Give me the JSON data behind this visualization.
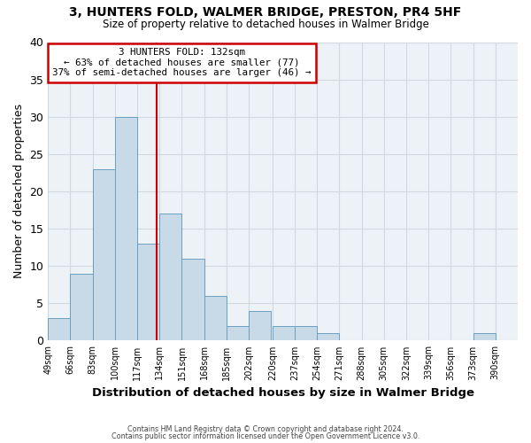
{
  "title": "3, HUNTERS FOLD, WALMER BRIDGE, PRESTON, PR4 5HF",
  "subtitle": "Size of property relative to detached houses in Walmer Bridge",
  "xlabel": "Distribution of detached houses by size in Walmer Bridge",
  "ylabel": "Number of detached properties",
  "bin_labels": [
    "49sqm",
    "66sqm",
    "83sqm",
    "100sqm",
    "117sqm",
    "134sqm",
    "151sqm",
    "168sqm",
    "185sqm",
    "202sqm",
    "220sqm",
    "237sqm",
    "254sqm",
    "271sqm",
    "288sqm",
    "305sqm",
    "322sqm",
    "339sqm",
    "356sqm",
    "373sqm",
    "390sqm"
  ],
  "bin_edges": [
    49,
    66,
    83,
    100,
    117,
    134,
    151,
    168,
    185,
    202,
    220,
    237,
    254,
    271,
    288,
    305,
    322,
    339,
    356,
    373,
    390
  ],
  "counts": [
    3,
    9,
    23,
    30,
    13,
    17,
    11,
    6,
    2,
    4,
    2,
    2,
    1,
    0,
    0,
    0,
    0,
    0,
    0,
    1,
    0
  ],
  "bar_color": "#c8d9e8",
  "bar_edge_color": "#6aa0c0",
  "property_size": 132,
  "vline_color": "#cc0000",
  "annotation_text": "3 HUNTERS FOLD: 132sqm\n← 63% of detached houses are smaller (77)\n37% of semi-detached houses are larger (46) →",
  "annotation_box_color": "#ffffff",
  "annotation_box_edge_color": "#cc0000",
  "ylim": [
    0,
    40
  ],
  "yticks": [
    0,
    5,
    10,
    15,
    20,
    25,
    30,
    35,
    40
  ],
  "grid_color": "#d0d8e0",
  "background_color": "#edf2f7",
  "footer_line1": "Contains HM Land Registry data © Crown copyright and database right 2024.",
  "footer_line2": "Contains public sector information licensed under the Open Government Licence v3.0."
}
